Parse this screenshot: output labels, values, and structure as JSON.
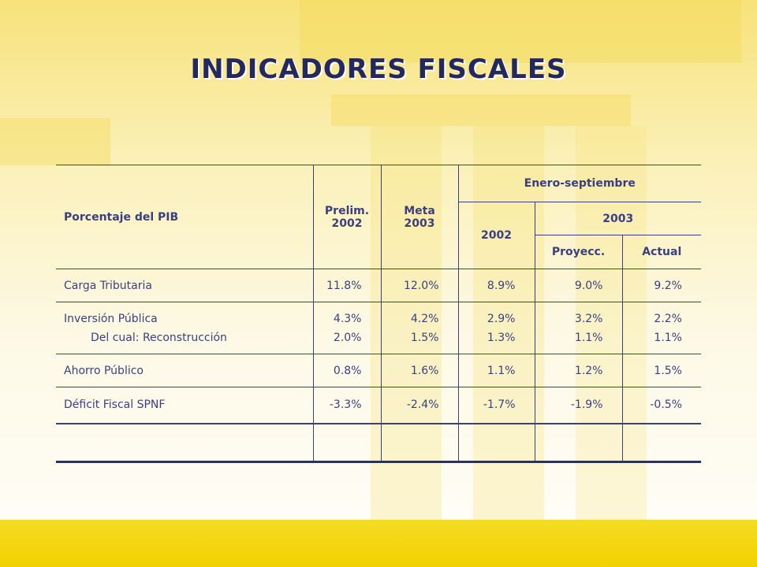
{
  "title": "INDICADORES FISCALES",
  "table": {
    "headers": {
      "label": "Porcentaje del PIB",
      "prelim_line1": "Prelim.",
      "prelim_line2": "2002",
      "meta_line1": "Meta",
      "meta_line2": "2003",
      "period": "Enero-septiembre",
      "period_2002": "2002",
      "period_2003": "2003",
      "proyecc": "Proyecc.",
      "actual": "Actual"
    },
    "rows": [
      {
        "label": "Carga Tributaria",
        "prelim": "11.8%",
        "meta": "12.0%",
        "p2002": "8.9%",
        "proyecc": "9.0%",
        "actual": "9.2%"
      },
      {
        "label": "Inversión Pública",
        "sublabel": "Del cual: Reconstrucción",
        "prelim": "4.3%",
        "prelim_sub": "2.0%",
        "meta": "4.2%",
        "meta_sub": "1.5%",
        "p2002": "2.9%",
        "p2002_sub": "1.3%",
        "proyecc": "3.2%",
        "proyecc_sub": "1.1%",
        "actual": "2.2%",
        "actual_sub": "1.1%"
      },
      {
        "label": "Ahorro Público",
        "prelim": "0.8%",
        "meta": "1.6%",
        "p2002": "1.1%",
        "proyecc": "1.2%",
        "actual": "1.5%"
      },
      {
        "label": "Déficit Fiscal SPNF",
        "prelim": "-3.3%",
        "meta": "-2.4%",
        "p2002": "-1.7%",
        "proyecc": "-1.9%",
        "actual": "-0.5%"
      }
    ]
  }
}
